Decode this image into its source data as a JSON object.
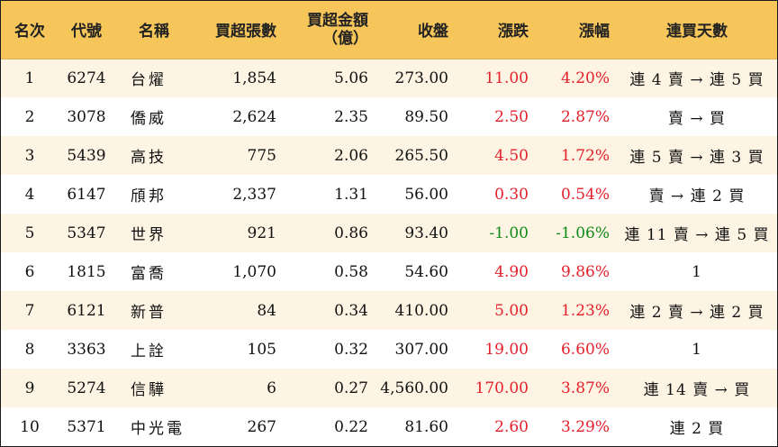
{
  "columns": [
    "名次",
    "代號",
    "名稱",
    "買超張數",
    "買超金額",
    "（億）",
    "收盤",
    "漲跌",
    "漲幅",
    "連買天數"
  ],
  "colors": {
    "header_bg": "#f7c65b",
    "stripe_bg": "#fdf4e3",
    "up": "#e5202b",
    "down": "#0f8a1a"
  },
  "rows": [
    {
      "rank": "1",
      "code": "6274",
      "name": "台燿",
      "buy_volume": "1,854",
      "buy_amount": "5.06",
      "close": "273.00",
      "change": "11.00",
      "pct": "4.20%",
      "direction": "up",
      "streak": "連 4 賣 → 連 5 買"
    },
    {
      "rank": "2",
      "code": "3078",
      "name": "僑威",
      "buy_volume": "2,624",
      "buy_amount": "2.35",
      "close": "89.50",
      "change": "2.50",
      "pct": "2.87%",
      "direction": "up",
      "streak": "賣 → 買"
    },
    {
      "rank": "3",
      "code": "5439",
      "name": "高技",
      "buy_volume": "775",
      "buy_amount": "2.06",
      "close": "265.50",
      "change": "4.50",
      "pct": "1.72%",
      "direction": "up",
      "streak": "連 5 賣 → 連 3 買"
    },
    {
      "rank": "4",
      "code": "6147",
      "name": "頎邦",
      "buy_volume": "2,337",
      "buy_amount": "1.31",
      "close": "56.00",
      "change": "0.30",
      "pct": "0.54%",
      "direction": "up",
      "streak": "賣 → 連 2 買"
    },
    {
      "rank": "5",
      "code": "5347",
      "name": "世界",
      "buy_volume": "921",
      "buy_amount": "0.86",
      "close": "93.40",
      "change": "-1.00",
      "pct": "-1.06%",
      "direction": "down",
      "streak": "連 11 賣 → 連 5 買"
    },
    {
      "rank": "6",
      "code": "1815",
      "name": "富喬",
      "buy_volume": "1,070",
      "buy_amount": "0.58",
      "close": "54.60",
      "change": "4.90",
      "pct": "9.86%",
      "direction": "up",
      "streak": "1"
    },
    {
      "rank": "7",
      "code": "6121",
      "name": "新普",
      "buy_volume": "84",
      "buy_amount": "0.34",
      "close": "410.00",
      "change": "5.00",
      "pct": "1.23%",
      "direction": "up",
      "streak": "連 2 賣 → 連 2 買"
    },
    {
      "rank": "8",
      "code": "3363",
      "name": "上詮",
      "buy_volume": "105",
      "buy_amount": "0.32",
      "close": "307.00",
      "change": "19.00",
      "pct": "6.60%",
      "direction": "up",
      "streak": "1"
    },
    {
      "rank": "9",
      "code": "5274",
      "name": "信驊",
      "buy_volume": "6",
      "buy_amount": "0.27",
      "close": "4,560.00",
      "change": "170.00",
      "pct": "3.87%",
      "direction": "up",
      "streak": "連 14 賣 → 買"
    },
    {
      "rank": "10",
      "code": "5371",
      "name": "中光電",
      "buy_volume": "267",
      "buy_amount": "0.22",
      "close": "81.60",
      "change": "2.60",
      "pct": "3.29%",
      "direction": "up",
      "streak": "連 2 買"
    }
  ]
}
